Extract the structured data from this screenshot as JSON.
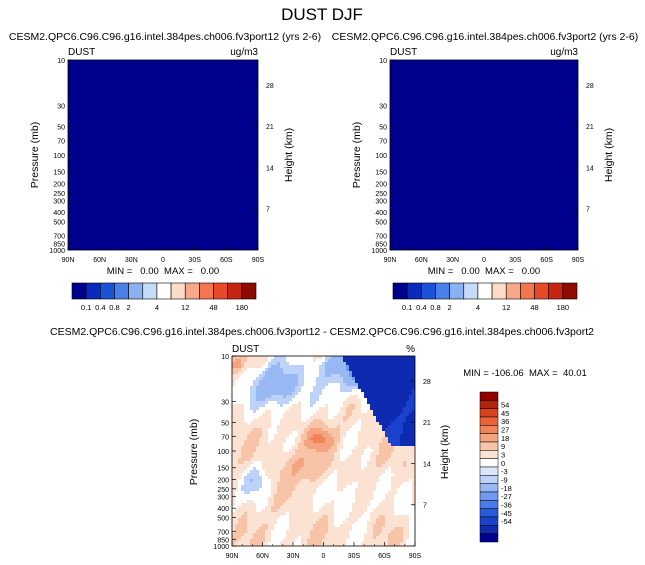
{
  "page": {
    "title": "DUST DJF"
  },
  "colors": {
    "panel_fill": "#00008F",
    "abs_scale": [
      "#00008F",
      "#0A2ABE",
      "#1A52D8",
      "#4A80E8",
      "#8AB2F2",
      "#C6DBF8",
      "#FFFFFF",
      "#FDDCC7",
      "#F7A88A",
      "#F2774F",
      "#E84A28",
      "#C82412",
      "#8F0A00"
    ],
    "diff_scale": [
      "#00008F",
      "#0D2AB0",
      "#1A42CC",
      "#2A5ADC",
      "#4A7CE8",
      "#709AF0",
      "#98B8F4",
      "#BCD2F8",
      "#DCE6FA",
      "#FFFFFF",
      "#FCE2D2",
      "#F8C4A8",
      "#F4A47E",
      "#F08358",
      "#EC6238",
      "#D8421E",
      "#B02410",
      "#8F0000"
    ]
  },
  "chart_data": [
    {
      "type": "heatmap",
      "name": "left-panel",
      "title": "CESM2.QPC6.C96.C96.g16.intel.384pes.ch006.fv3port12 (yrs 2-6)",
      "label_left": "DUST",
      "label_right": "ug/m3",
      "xlabel": "",
      "ylabel": "Pressure (mb)",
      "y2label": "Height (km)",
      "x_ticks": [
        "90N",
        "60N",
        "30N",
        "0",
        "30S",
        "60S",
        "90S"
      ],
      "y_ticks": [
        "10",
        "30",
        "50",
        "70",
        "100",
        "150",
        "200",
        "250",
        "300",
        "400",
        "500",
        "700",
        "850",
        "1000"
      ],
      "y_tick_values": [
        10,
        30,
        50,
        70,
        100,
        150,
        200,
        250,
        300,
        400,
        500,
        700,
        850,
        1000
      ],
      "height_ticks": [
        "28",
        "21",
        "14",
        "7"
      ],
      "height_tick_values": [
        28,
        21,
        14,
        7
      ],
      "ylim": [
        10,
        1000
      ],
      "stats": "MIN =   0.00  MAX =   0.00",
      "min": 0.0,
      "max": 0.0,
      "field": "uniform"
    },
    {
      "type": "heatmap",
      "name": "right-panel",
      "title": "CESM2.QPC6.C96.C96.g16.intel.384pes.ch006.fv3port2 (yrs 2-6)",
      "label_left": "DUST",
      "label_right": "ug/m3",
      "xlabel": "",
      "ylabel": "Pressure (mb)",
      "y2label": "Height (km)",
      "x_ticks": [
        "90N",
        "60N",
        "30N",
        "0",
        "30S",
        "60S",
        "90S"
      ],
      "y_ticks": [
        "10",
        "30",
        "50",
        "70",
        "100",
        "150",
        "200",
        "250",
        "300",
        "400",
        "500",
        "700",
        "850",
        "1000"
      ],
      "y_tick_values": [
        10,
        30,
        50,
        70,
        100,
        150,
        200,
        250,
        300,
        400,
        500,
        700,
        850,
        1000
      ],
      "height_ticks": [
        "28",
        "21",
        "14",
        "7"
      ],
      "height_tick_values": [
        28,
        21,
        14,
        7
      ],
      "ylim": [
        10,
        1000
      ],
      "stats": "MIN =   0.00  MAX =   0.00",
      "min": 0.0,
      "max": 0.0,
      "field": "uniform"
    },
    {
      "type": "heatmap",
      "name": "difference-panel",
      "title": "CESM2.QPC6.C96.C96.g16.intel.384pes.ch006.fv3port12 - CESM2.QPC6.C96.C96.g16.intel.384pes.ch006.fv3port2",
      "label_left": "DUST",
      "label_right": "%",
      "xlabel": "",
      "ylabel": "Pressure (mb)",
      "y2label": "Height (km)",
      "x_ticks": [
        "90N",
        "60N",
        "30N",
        "0",
        "30S",
        "60S",
        "90S"
      ],
      "y_ticks": [
        "10",
        "30",
        "50",
        "70",
        "100",
        "150",
        "200",
        "250",
        "300",
        "400",
        "500",
        "700",
        "850",
        "1000"
      ],
      "y_tick_values": [
        10,
        30,
        50,
        70,
        100,
        150,
        200,
        250,
        300,
        400,
        500,
        700,
        850,
        1000
      ],
      "height_ticks": [
        "28",
        "21",
        "14",
        "7"
      ],
      "height_tick_values": [
        28,
        21,
        14,
        7
      ],
      "ylim": [
        10,
        1000
      ],
      "stats": "MIN = -106.06  MAX =  40.01",
      "min": -106.06,
      "max": 40.01,
      "field": "difference"
    }
  ],
  "colorbars": {
    "absolute": {
      "labels": [
        "0.1",
        "0.4",
        "0.8",
        "2",
        "4",
        "12",
        "48",
        "180"
      ]
    },
    "difference": {
      "labels": [
        "54",
        "45",
        "36",
        "27",
        "18",
        "9",
        "3",
        "0",
        "-3",
        "-9",
        "-18",
        "-27",
        "-36",
        "-45",
        "-54"
      ]
    }
  }
}
